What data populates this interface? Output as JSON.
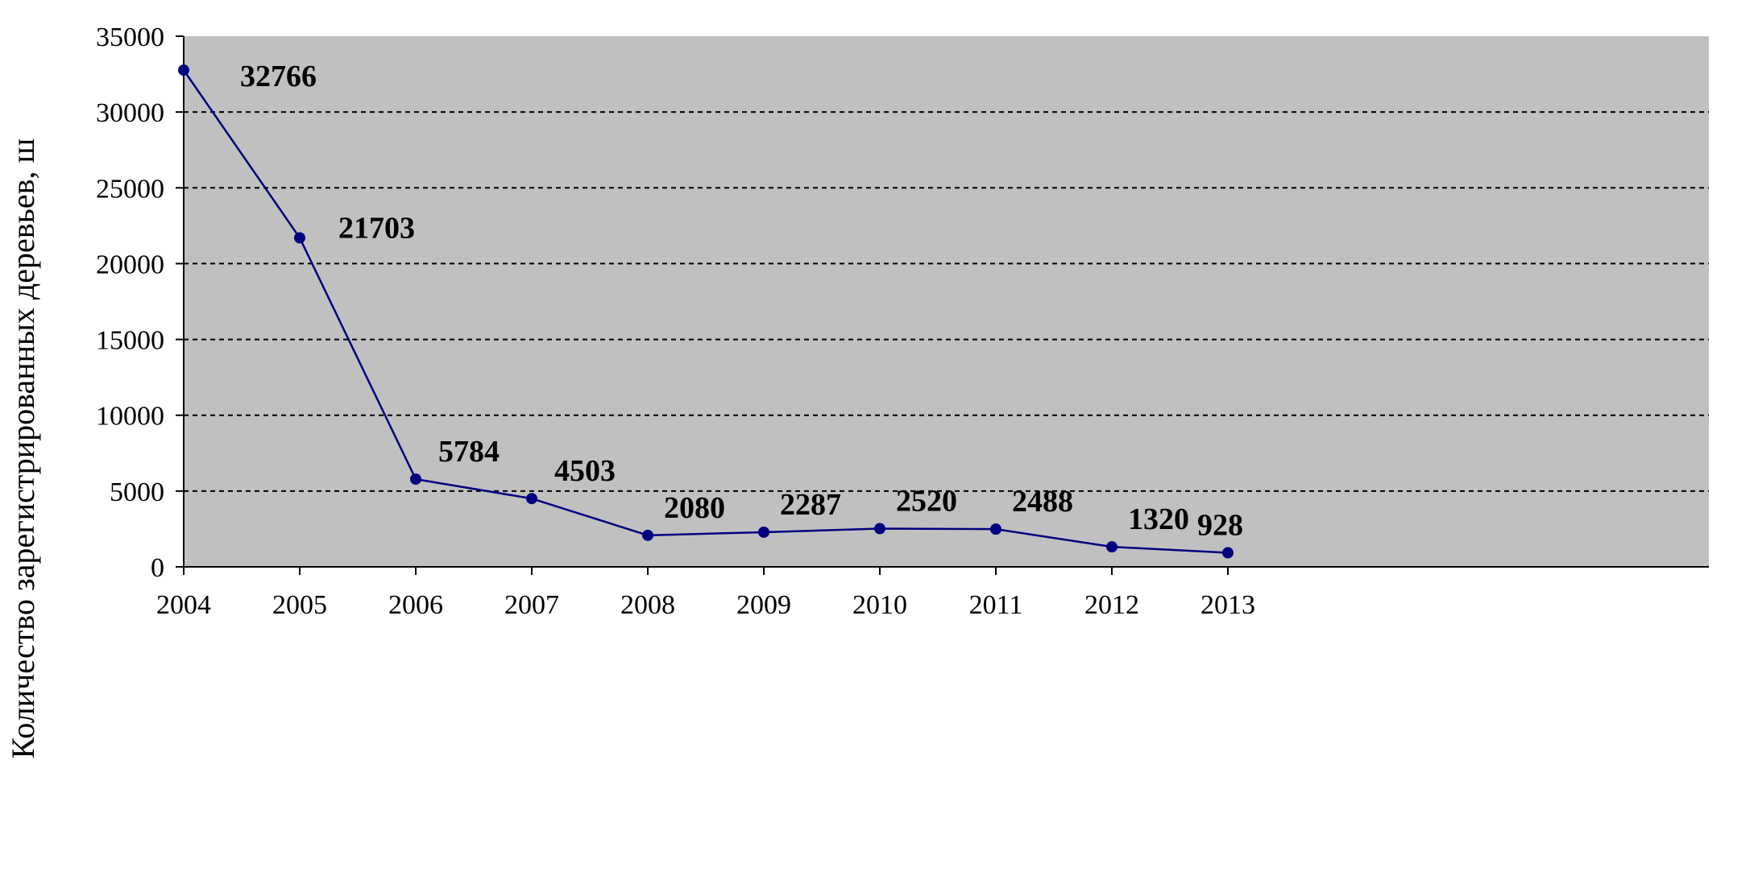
{
  "chart_data": {
    "type": "line",
    "title": "",
    "xlabel": "",
    "ylabel": "Количество зарегистрированных деревьев, ш",
    "x": [
      2004,
      2005,
      2006,
      2007,
      2008,
      2009,
      2010,
      2011,
      2012,
      2013
    ],
    "categories": [
      "2004",
      "2005",
      "2006",
      "2007",
      "2008",
      "2009",
      "2010",
      "2011",
      "2012",
      "2013"
    ],
    "series": [
      {
        "values": [
          32766,
          21703,
          5784,
          4503,
          2080,
          2287,
          2520,
          2488,
          1320,
          928
        ],
        "labels": [
          "32766",
          "21703",
          "5784",
          "4503",
          "2080",
          "2287",
          "2520",
          "2488",
          "1320",
          "928"
        ]
      }
    ],
    "ylim": [
      0,
      35000
    ],
    "yticks": [
      "0",
      "5000",
      "10000",
      "15000",
      "20000",
      "25000",
      "30000",
      "35000"
    ],
    "grid": "horizontal dashed",
    "legend": "none",
    "colors": {
      "plot_background": "#c0c0c0",
      "line": "#000080",
      "marker": "#000080",
      "grid": "#000000"
    }
  }
}
